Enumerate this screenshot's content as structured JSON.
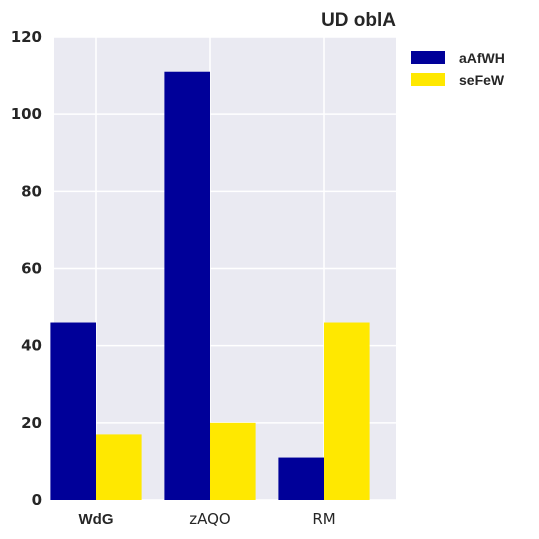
{
  "chart_data": {
    "type": "bar",
    "title": "UD oblA",
    "categories": [
      "WdG",
      "zAQO",
      "RM"
    ],
    "series": [
      {
        "name": "aAfWH",
        "color": "#000099",
        "values": [
          46,
          111,
          11
        ]
      },
      {
        "name": "seFeW",
        "color": "#ffe800",
        "values": [
          17,
          20,
          46
        ]
      }
    ],
    "ylim": [
      0,
      120
    ],
    "yticks": [
      0,
      20,
      40,
      60,
      80,
      100,
      120
    ],
    "xlabel": "",
    "ylabel": "",
    "grid": true,
    "legend": "outside-top-right",
    "background": "#eaeaf2"
  }
}
